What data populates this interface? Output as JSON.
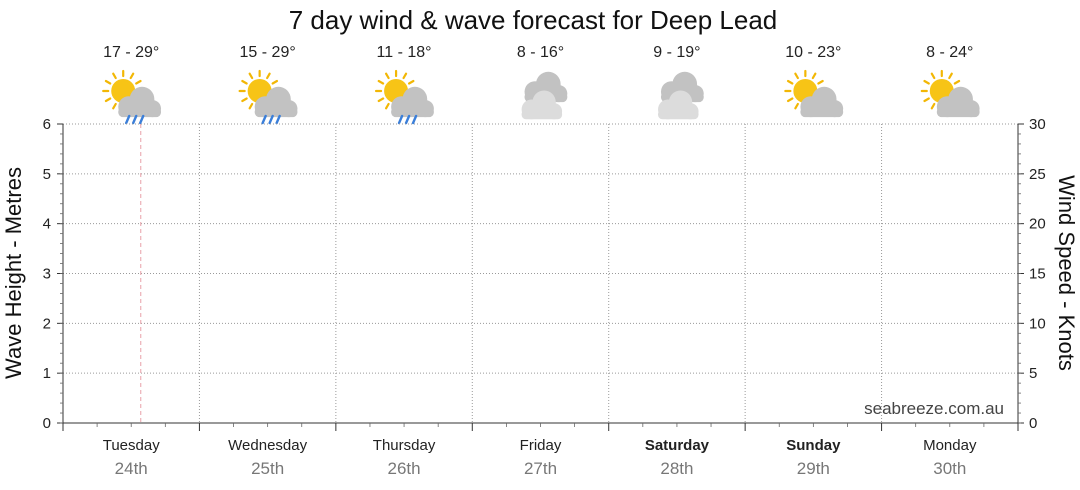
{
  "chart_data": {
    "type": "line",
    "title": "7 day wind & wave forecast for Deep Lead",
    "ylabel_left": "Wave Height - Metres",
    "ylabel_right": "Wind Speed - Knots",
    "ylim_left": [
      0,
      6
    ],
    "ylim_right": [
      0,
      30
    ],
    "yticks_left": [
      "0",
      "1",
      "2",
      "3",
      "4",
      "5",
      "6"
    ],
    "yticks_right": [
      "0",
      "5",
      "10",
      "15",
      "20",
      "25",
      "30"
    ],
    "grid": true,
    "watermark": "seabreeze.com.au",
    "days": [
      {
        "day": "Tuesday",
        "date": "24th",
        "temp": "17 - 29°",
        "icon": "sun-cloud-rain-icon",
        "bold": false
      },
      {
        "day": "Wednesday",
        "date": "25th",
        "temp": "15 - 29°",
        "icon": "sun-cloud-rain-icon",
        "bold": false
      },
      {
        "day": "Thursday",
        "date": "26th",
        "temp": "11 - 18°",
        "icon": "sun-cloud-rain-icon",
        "bold": false
      },
      {
        "day": "Friday",
        "date": "27th",
        "temp": "8 - 16°",
        "icon": "cloud-icon",
        "bold": false
      },
      {
        "day": "Saturday",
        "date": "28th",
        "temp": "9 - 19°",
        "icon": "cloud-icon",
        "bold": true
      },
      {
        "day": "Sunday",
        "date": "29th",
        "temp": "10 - 23°",
        "icon": "sun-cloud-icon",
        "bold": true
      },
      {
        "day": "Monday",
        "date": "30th",
        "temp": "8 - 24°",
        "icon": "sun-cloud-icon",
        "bold": false
      }
    ],
    "series": [],
    "current_time_marker_day_fraction": 0.57
  },
  "colors": {
    "grid": "#9a9a9a",
    "now_marker": "#e8a0a8",
    "sun": "#f7c416",
    "sun_ray": "#f2b705",
    "cloud_light": "#dcdcdc",
    "cloud_dark": "#c2c2c2",
    "rain": "#3b7fd9"
  }
}
